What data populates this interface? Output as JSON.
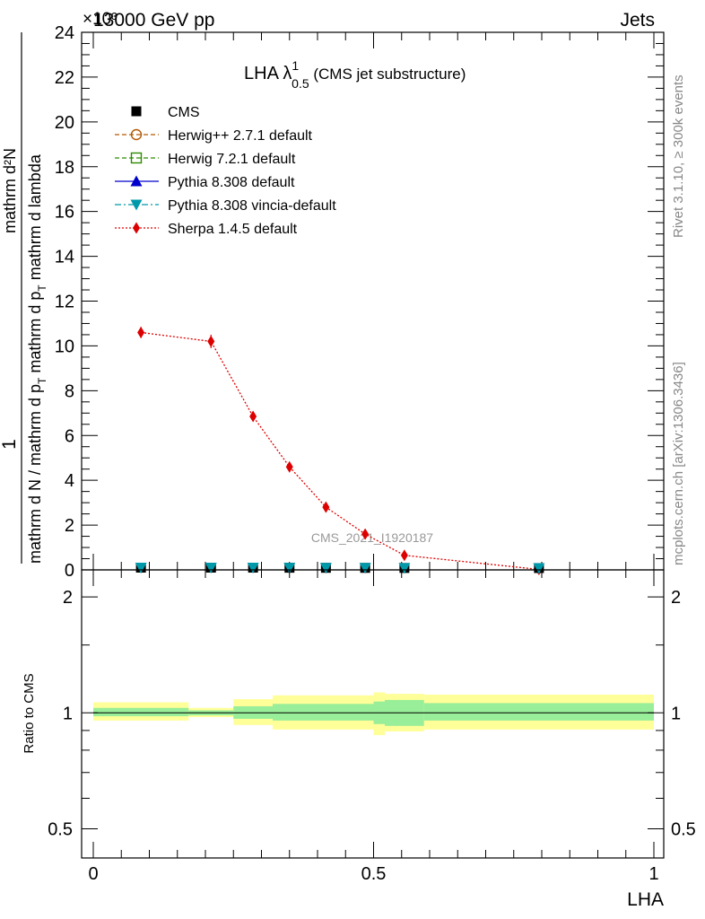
{
  "header": {
    "left": "13000 GeV pp",
    "right": "Jets",
    "exponent": "×10³"
  },
  "side_labels": {
    "rivet": "Rivet 3.1.10, ≥ 300k events",
    "mcplots": "mcplots.cern.ch [arXiv:1306.3436]"
  },
  "watermark": "CMS_2021_I1920187",
  "chart_data": [
    {
      "type": "line",
      "panel": "main",
      "title_main": "LHA λ",
      "title_sup": "1",
      "title_sub": "0.5",
      "title_rest": " (CMS jet substructure)",
      "ylabel_numerator": "1",
      "ylabel_denominator": "mathrm d N / mathrm d p_T mathrm d p_T mathrm d lambda",
      "ylabel_top": "mathrm d²N",
      "ylabel_ms": "mathrm d N / mathrm d p",
      "ylabel_sub": "T",
      "ylabel_ms2": " mathrm d p",
      "ylabel_sub2": "T",
      "ylabel_ms3": " mathrm d lambda",
      "xlim": [
        0,
        1
      ],
      "ylim": [
        0,
        24
      ],
      "yticks": [
        "0",
        "2",
        "4",
        "6",
        "8",
        "10",
        "12",
        "14",
        "16",
        "18",
        "20",
        "22",
        "24"
      ],
      "legend": [
        {
          "name": "CMS",
          "color": "#000000",
          "marker": "square",
          "line": "none"
        },
        {
          "name": "Herwig++ 2.7.1 default",
          "color": "#b35900",
          "marker": "open-circle",
          "line": "dashed"
        },
        {
          "name": "Herwig 7.2.1 default",
          "color": "#2e8b00",
          "marker": "open-square",
          "line": "dashed"
        },
        {
          "name": "Pythia 8.308 default",
          "color": "#0000cc",
          "marker": "triangle",
          "line": "solid"
        },
        {
          "name": "Pythia 8.308 vincia-default",
          "color": "#0099aa",
          "marker": "triangle-down",
          "line": "dashdot"
        },
        {
          "name": "Sherpa 1.4.5 default",
          "color": "#dd0000",
          "marker": "diamond",
          "line": "dotted"
        }
      ],
      "series": [
        {
          "name": "Sherpa 1.4.5 default",
          "x": [
            0.085,
            0.21,
            0.285,
            0.35,
            0.415,
            0.485,
            0.555,
            0.795
          ],
          "y": [
            10.6,
            10.2,
            6.85,
            4.6,
            2.8,
            1.6,
            0.65,
            0.02
          ],
          "err": [
            0.25,
            0.3,
            0.2,
            0.12,
            0.1,
            0.08,
            0.05,
            0.02
          ]
        },
        {
          "name": "CMS",
          "x": [
            0.085,
            0.21,
            0.285,
            0.35,
            0.415,
            0.485,
            0.555,
            0.795
          ],
          "y": [
            0.02,
            0.02,
            0.02,
            0.015,
            0.012,
            0.01,
            0.006,
            0.002
          ]
        }
      ]
    },
    {
      "type": "area",
      "panel": "ratio",
      "ylabel": "Ratio to CMS",
      "xlabel": "LHA",
      "xlim": [
        0,
        1
      ],
      "ylim": [
        0.42,
        2.35
      ],
      "yscale": "log",
      "yticks": [
        "0.5",
        "1",
        "2"
      ],
      "xticks": [
        "0",
        "0.5",
        "1"
      ],
      "bins": [
        0,
        0.17,
        0.25,
        0.32,
        0.5,
        0.52,
        0.59,
        1.0
      ],
      "band_inner": [
        [
          0.98,
          1.03
        ],
        [
          0.985,
          1.015
        ],
        [
          0.965,
          1.04
        ],
        [
          0.955,
          1.055
        ],
        [
          0.935,
          1.07
        ],
        [
          0.925,
          1.08
        ],
        [
          0.955,
          1.06
        ]
      ],
      "band_outer": [
        [
          0.955,
          1.065
        ],
        [
          0.975,
          1.03
        ],
        [
          0.93,
          1.085
        ],
        [
          0.905,
          1.11
        ],
        [
          0.875,
          1.13
        ],
        [
          0.895,
          1.12
        ],
        [
          0.905,
          1.115
        ]
      ],
      "reference": 1
    }
  ]
}
